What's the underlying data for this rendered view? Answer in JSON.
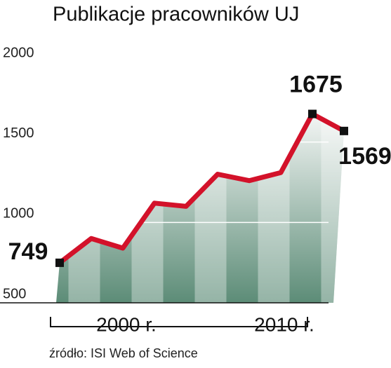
{
  "chart_data": {
    "type": "line",
    "title": "Publikacje pracowników UJ",
    "categories": [
      null,
      null,
      "2000 r.",
      null,
      null,
      null,
      null,
      "2010 r.",
      null,
      null
    ],
    "values": [
      749,
      900,
      840,
      1120,
      1100,
      1300,
      1260,
      1310,
      1675,
      1569
    ],
    "label_points": [
      0,
      8,
      9
    ],
    "color": "#d3122a",
    "ylim": [
      500,
      2000
    ],
    "yticks": [
      500,
      1000,
      1500,
      2000
    ],
    "grid": true,
    "source": "źródło: ISI Web of Science"
  }
}
